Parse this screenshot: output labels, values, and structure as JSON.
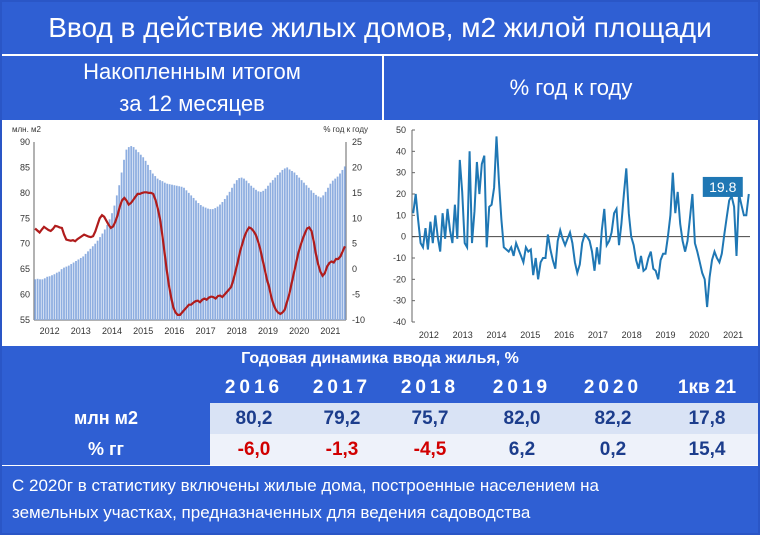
{
  "title": "Ввод в действие жилых домов, м2 жилой площади",
  "left_panel": {
    "heading_line1": "Накопленным итогом",
    "heading_line2": "за 12 месяцев"
  },
  "right_panel": {
    "heading": "% год к году"
  },
  "colors": {
    "header_blue": "#2f5fd3",
    "bar_blue": "#8eaee0",
    "line_red": "#b01c1c",
    "line_blue": "#1f77b4",
    "negative": "#d10000"
  },
  "chart_data": [
    {
      "type": "bar",
      "title": "",
      "left_axis_label": "млн. м2",
      "right_axis_label": "% год к году",
      "ylim": [
        55,
        90
      ],
      "yticks": [
        55,
        60,
        65,
        70,
        75,
        80,
        85,
        90
      ],
      "y2lim": [
        -10,
        25
      ],
      "y2ticks": [
        -10,
        -5,
        0,
        5,
        10,
        15,
        20,
        25
      ],
      "x_tick_labels": [
        "2012",
        "2013",
        "2014",
        "2015",
        "2016",
        "2017",
        "2018",
        "2019",
        "2020",
        "2021"
      ],
      "series": [
        {
          "type": "bar",
          "axis": "left",
          "values": [
            63.0,
            63.1,
            63.0,
            63.0,
            63.2,
            63.5,
            63.6,
            63.8,
            64.0,
            64.3,
            64.5,
            65.0,
            65.3,
            65.5,
            65.7,
            66.0,
            66.3,
            66.6,
            66.9,
            67.2,
            67.5,
            68.0,
            68.5,
            69.0,
            69.5,
            70.0,
            70.6,
            71.3,
            72.0,
            72.8,
            73.7,
            74.8,
            76.0,
            77.5,
            79.5,
            81.5,
            84.0,
            86.5,
            88.5,
            89.0,
            89.2,
            89.0,
            88.5,
            88.0,
            87.5,
            87.0,
            86.3,
            85.5,
            84.5,
            83.8,
            83.3,
            82.8,
            82.5,
            82.3,
            82.0,
            81.8,
            81.7,
            81.6,
            81.5,
            81.4,
            81.3,
            81.2,
            81.0,
            80.5,
            80.0,
            79.5,
            79.0,
            78.5,
            78.0,
            77.6,
            77.3,
            77.1,
            76.9,
            76.8,
            76.8,
            77.0,
            77.3,
            77.7,
            78.2,
            78.8,
            79.5,
            80.2,
            81.0,
            81.8,
            82.5,
            82.9,
            83.0,
            82.8,
            82.4,
            81.9,
            81.4,
            81.0,
            80.6,
            80.3,
            80.2,
            80.4,
            80.8,
            81.4,
            82.0,
            82.5,
            83.0,
            83.5,
            84.0,
            84.5,
            84.8,
            85.0,
            84.6,
            84.3,
            84.0,
            83.5,
            83.0,
            82.5,
            82.0,
            81.5,
            81.0,
            80.5,
            80.0,
            79.6,
            79.3,
            79.1,
            79.5,
            80.2,
            81.0,
            81.8,
            82.4,
            82.8,
            83.2,
            83.8,
            84.5,
            85.2
          ]
        },
        {
          "type": "line",
          "axis": "right",
          "values": [
            8.0,
            7.6,
            7.2,
            7.8,
            8.3,
            8.0,
            7.7,
            7.5,
            7.9,
            8.5,
            8.4,
            8.2,
            8.1,
            6.8,
            5.8,
            5.7,
            5.6,
            5.7,
            5.5,
            5.9,
            6.2,
            6.5,
            6.8,
            6.6,
            6.4,
            6.3,
            6.5,
            7.4,
            8.7,
            10.0,
            10.6,
            10.3,
            9.5,
            8.7,
            8.1,
            8.4,
            9.3,
            10.6,
            12.3,
            13.5,
            14.0,
            13.5,
            12.7,
            13.0,
            13.6,
            14.2,
            14.8,
            14.8,
            15.0,
            15.1,
            15.1,
            15.0,
            15.0,
            14.8,
            13.6,
            12.0,
            10.0,
            7.0,
            3.5,
            0.0,
            -3.0,
            -5.5,
            -7.5,
            -8.5,
            -9.0,
            -9.0,
            -8.5,
            -8.0,
            -7.5,
            -7.0,
            -7.0,
            -6.6,
            -6.3,
            -6.2,
            -6.5,
            -6.0,
            -5.8,
            -6.0,
            -5.6,
            -5.4,
            -5.5,
            -5.8,
            -5.3,
            -5.2,
            -5.5,
            -5.0,
            -4.5,
            -4.0,
            -3.5,
            -2.0,
            -0.3,
            1.5,
            3.5,
            5.0,
            6.5,
            7.5,
            8.2,
            8.0,
            7.5,
            6.8,
            5.5,
            4.0,
            2.0,
            0.0,
            -2.0,
            -3.5,
            -5.5,
            -7.0,
            -8.0,
            -8.5,
            -8.8,
            -8.5,
            -8.0,
            -6.5,
            -5.0,
            -3.0,
            -1.0,
            1.0,
            3.0,
            4.5,
            5.8,
            7.0,
            8.0,
            8.2,
            7.5,
            5.5,
            3.0,
            1.0,
            -0.5,
            -1.3,
            -0.8,
            0.5,
            1.2,
            1.5,
            1.3,
            2.0,
            2.0,
            2.5,
            3.5,
            4.5
          ]
        }
      ]
    },
    {
      "type": "line",
      "title": "",
      "ylim": [
        -40,
        50
      ],
      "yticks": [
        -40,
        -30,
        -20,
        -10,
        0,
        10,
        20,
        30,
        40,
        50
      ],
      "x_tick_labels": [
        "2012",
        "2013",
        "2014",
        "2015",
        "2016",
        "2017",
        "2018",
        "2019",
        "2020",
        "2021"
      ],
      "annotation": "19.8",
      "series": [
        {
          "values": [
            11,
            20,
            8,
            -3,
            -5,
            4,
            -6,
            7,
            -3,
            10,
            0,
            -7,
            11,
            -1,
            13,
            3,
            -3,
            15,
            -1,
            36,
            21,
            -3,
            -5,
            40,
            -3,
            12,
            35,
            20,
            34,
            38,
            -5,
            14,
            15,
            23,
            47,
            26,
            8,
            -5,
            -6,
            -7,
            -5,
            -9,
            -3,
            -6,
            -9,
            -12,
            -5,
            -7,
            -6,
            -18,
            -10,
            -20,
            -12,
            -10,
            -10,
            1,
            -6,
            -11,
            -15,
            -2,
            3,
            -1,
            -4,
            -1,
            2,
            -3,
            -12,
            -17,
            -13,
            -3,
            1,
            0,
            -2,
            -7,
            -16,
            -5,
            -13,
            3,
            13,
            -4,
            -2,
            2,
            11,
            13,
            -4,
            6,
            20,
            32,
            11,
            0,
            -4,
            -11,
            -15,
            -9,
            -16,
            -15,
            -10,
            -7,
            -15,
            -16,
            -20,
            -11,
            -8,
            -8,
            0,
            10,
            30,
            11,
            21,
            6,
            -2,
            -7,
            -2,
            9,
            20,
            -3,
            -7,
            -12,
            -17,
            -20,
            -33,
            -19,
            -11,
            -7,
            -10,
            -12,
            -8,
            1,
            9,
            17,
            19,
            14,
            -9,
            20,
            15,
            10,
            10,
            20
          ]
        }
      ]
    }
  ],
  "table": {
    "title": "Годовая динамика ввода жилья, %",
    "columns": [
      "2016",
      "2017",
      "2018",
      "2019",
      "2020",
      "1кв 21"
    ],
    "rows": [
      {
        "label": "млн м2",
        "values": [
          "80,2",
          "79,2",
          "75,7",
          "82,0",
          "82,2",
          "17,8"
        ]
      },
      {
        "label": "% гг",
        "values": [
          "-6,0",
          "-1,3",
          "-4,5",
          "6,2",
          "0,2",
          "15,4"
        ]
      }
    ]
  },
  "footer": {
    "line1": "С 2020г в статистику включены жилые дома, построенные населением на",
    "line2": "земельных участках, предназначенных для ведения садоводства"
  }
}
